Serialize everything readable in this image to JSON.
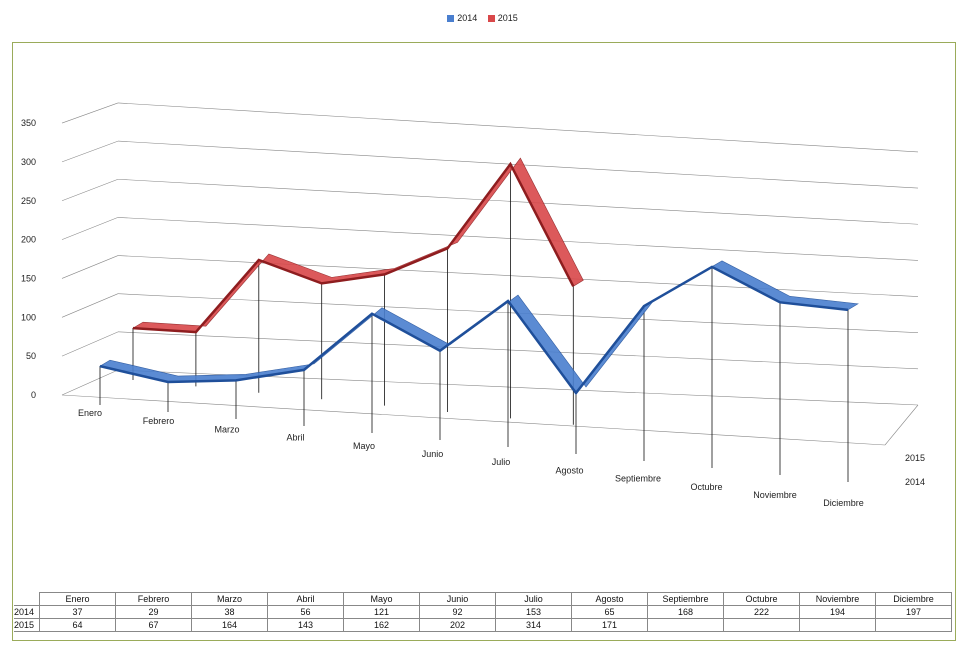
{
  "chart_data": {
    "type": "line",
    "style": "3d-ribbon",
    "categories": [
      "Enero",
      "Febrero",
      "Marzo",
      "Abril",
      "Mayo",
      "Junio",
      "Julio",
      "Agosto",
      "Septiembre",
      "Octubre",
      "Noviembre",
      "Diciembre"
    ],
    "series": [
      {
        "name": "2014",
        "color": "#4a7fcf",
        "values": [
          37,
          29,
          38,
          56,
          121,
          92,
          153,
          65,
          168,
          222,
          194,
          197
        ]
      },
      {
        "name": "2015",
        "color": "#d9484a",
        "values": [
          64,
          67,
          164,
          143,
          162,
          202,
          314,
          171,
          null,
          null,
          null,
          null
        ]
      }
    ],
    "yticks": [
      0,
      50,
      100,
      150,
      200,
      250,
      300,
      350
    ],
    "ylim": [
      0,
      350
    ],
    "grid": true,
    "legend": "top",
    "data_table": true
  }
}
